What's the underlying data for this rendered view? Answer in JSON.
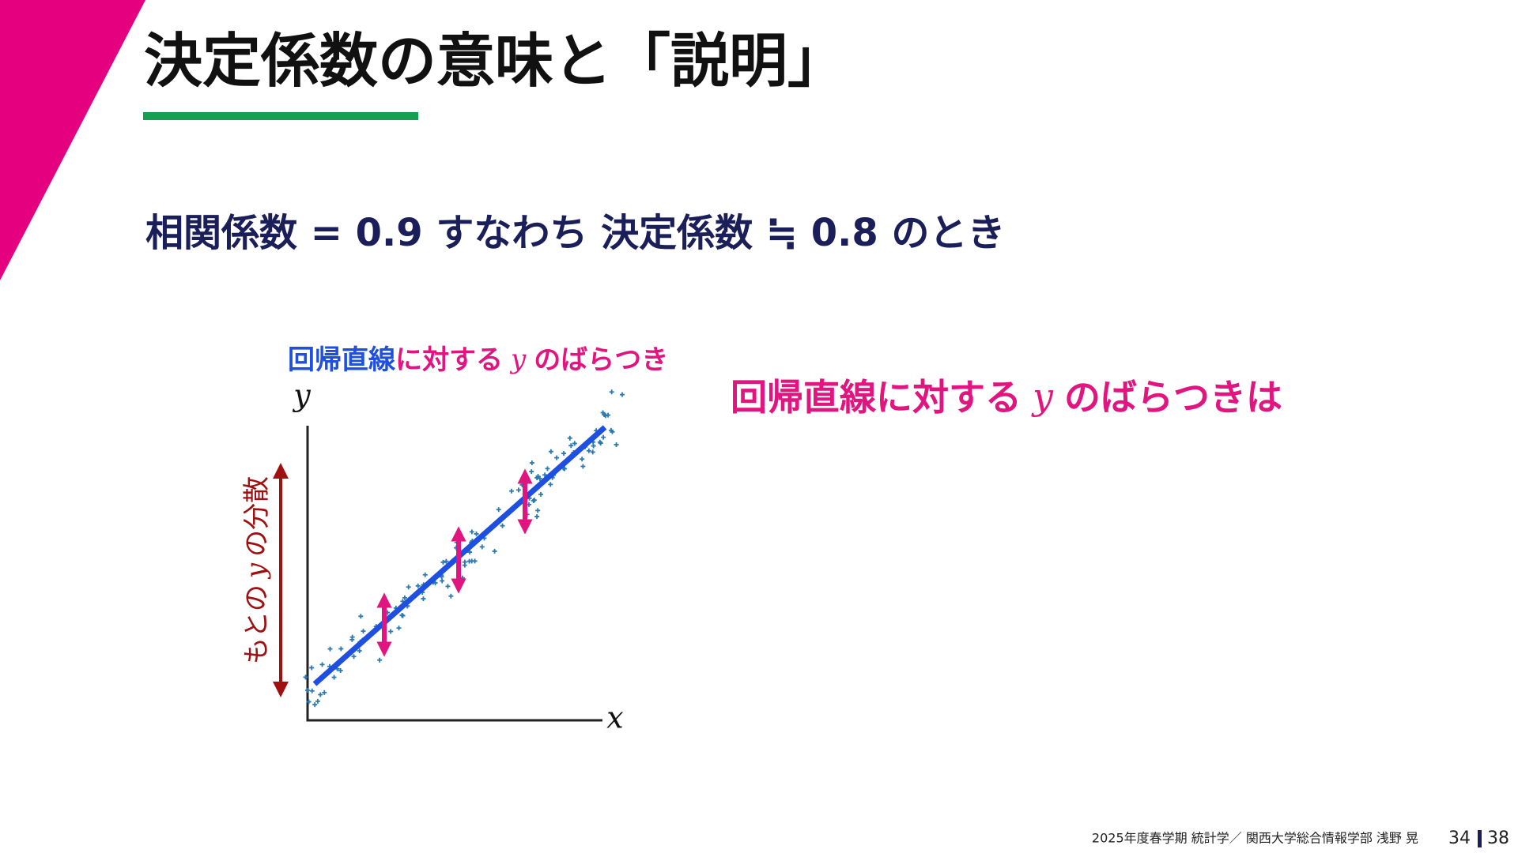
{
  "title": "決定係数の意味と「説明」",
  "subtitle": "相関係数 = 0.9 すなわち 決定係数 ≒ 0.8 のとき",
  "diagram": {
    "top_label": [
      "回帰直線",
      "に対する",
      "y",
      "のばらつき"
    ],
    "y_axis": "y",
    "x_axis": "x",
    "vertical_label": [
      "もとの",
      "y",
      "の分散"
    ]
  },
  "note": [
    "回帰直線に対する",
    "y",
    "のばらつきは"
  ],
  "footer": {
    "course": "2025年度春学期 統計学／ 関西大学総合情報学部 浅野 晃",
    "page": "34",
    "total": "38"
  }
}
